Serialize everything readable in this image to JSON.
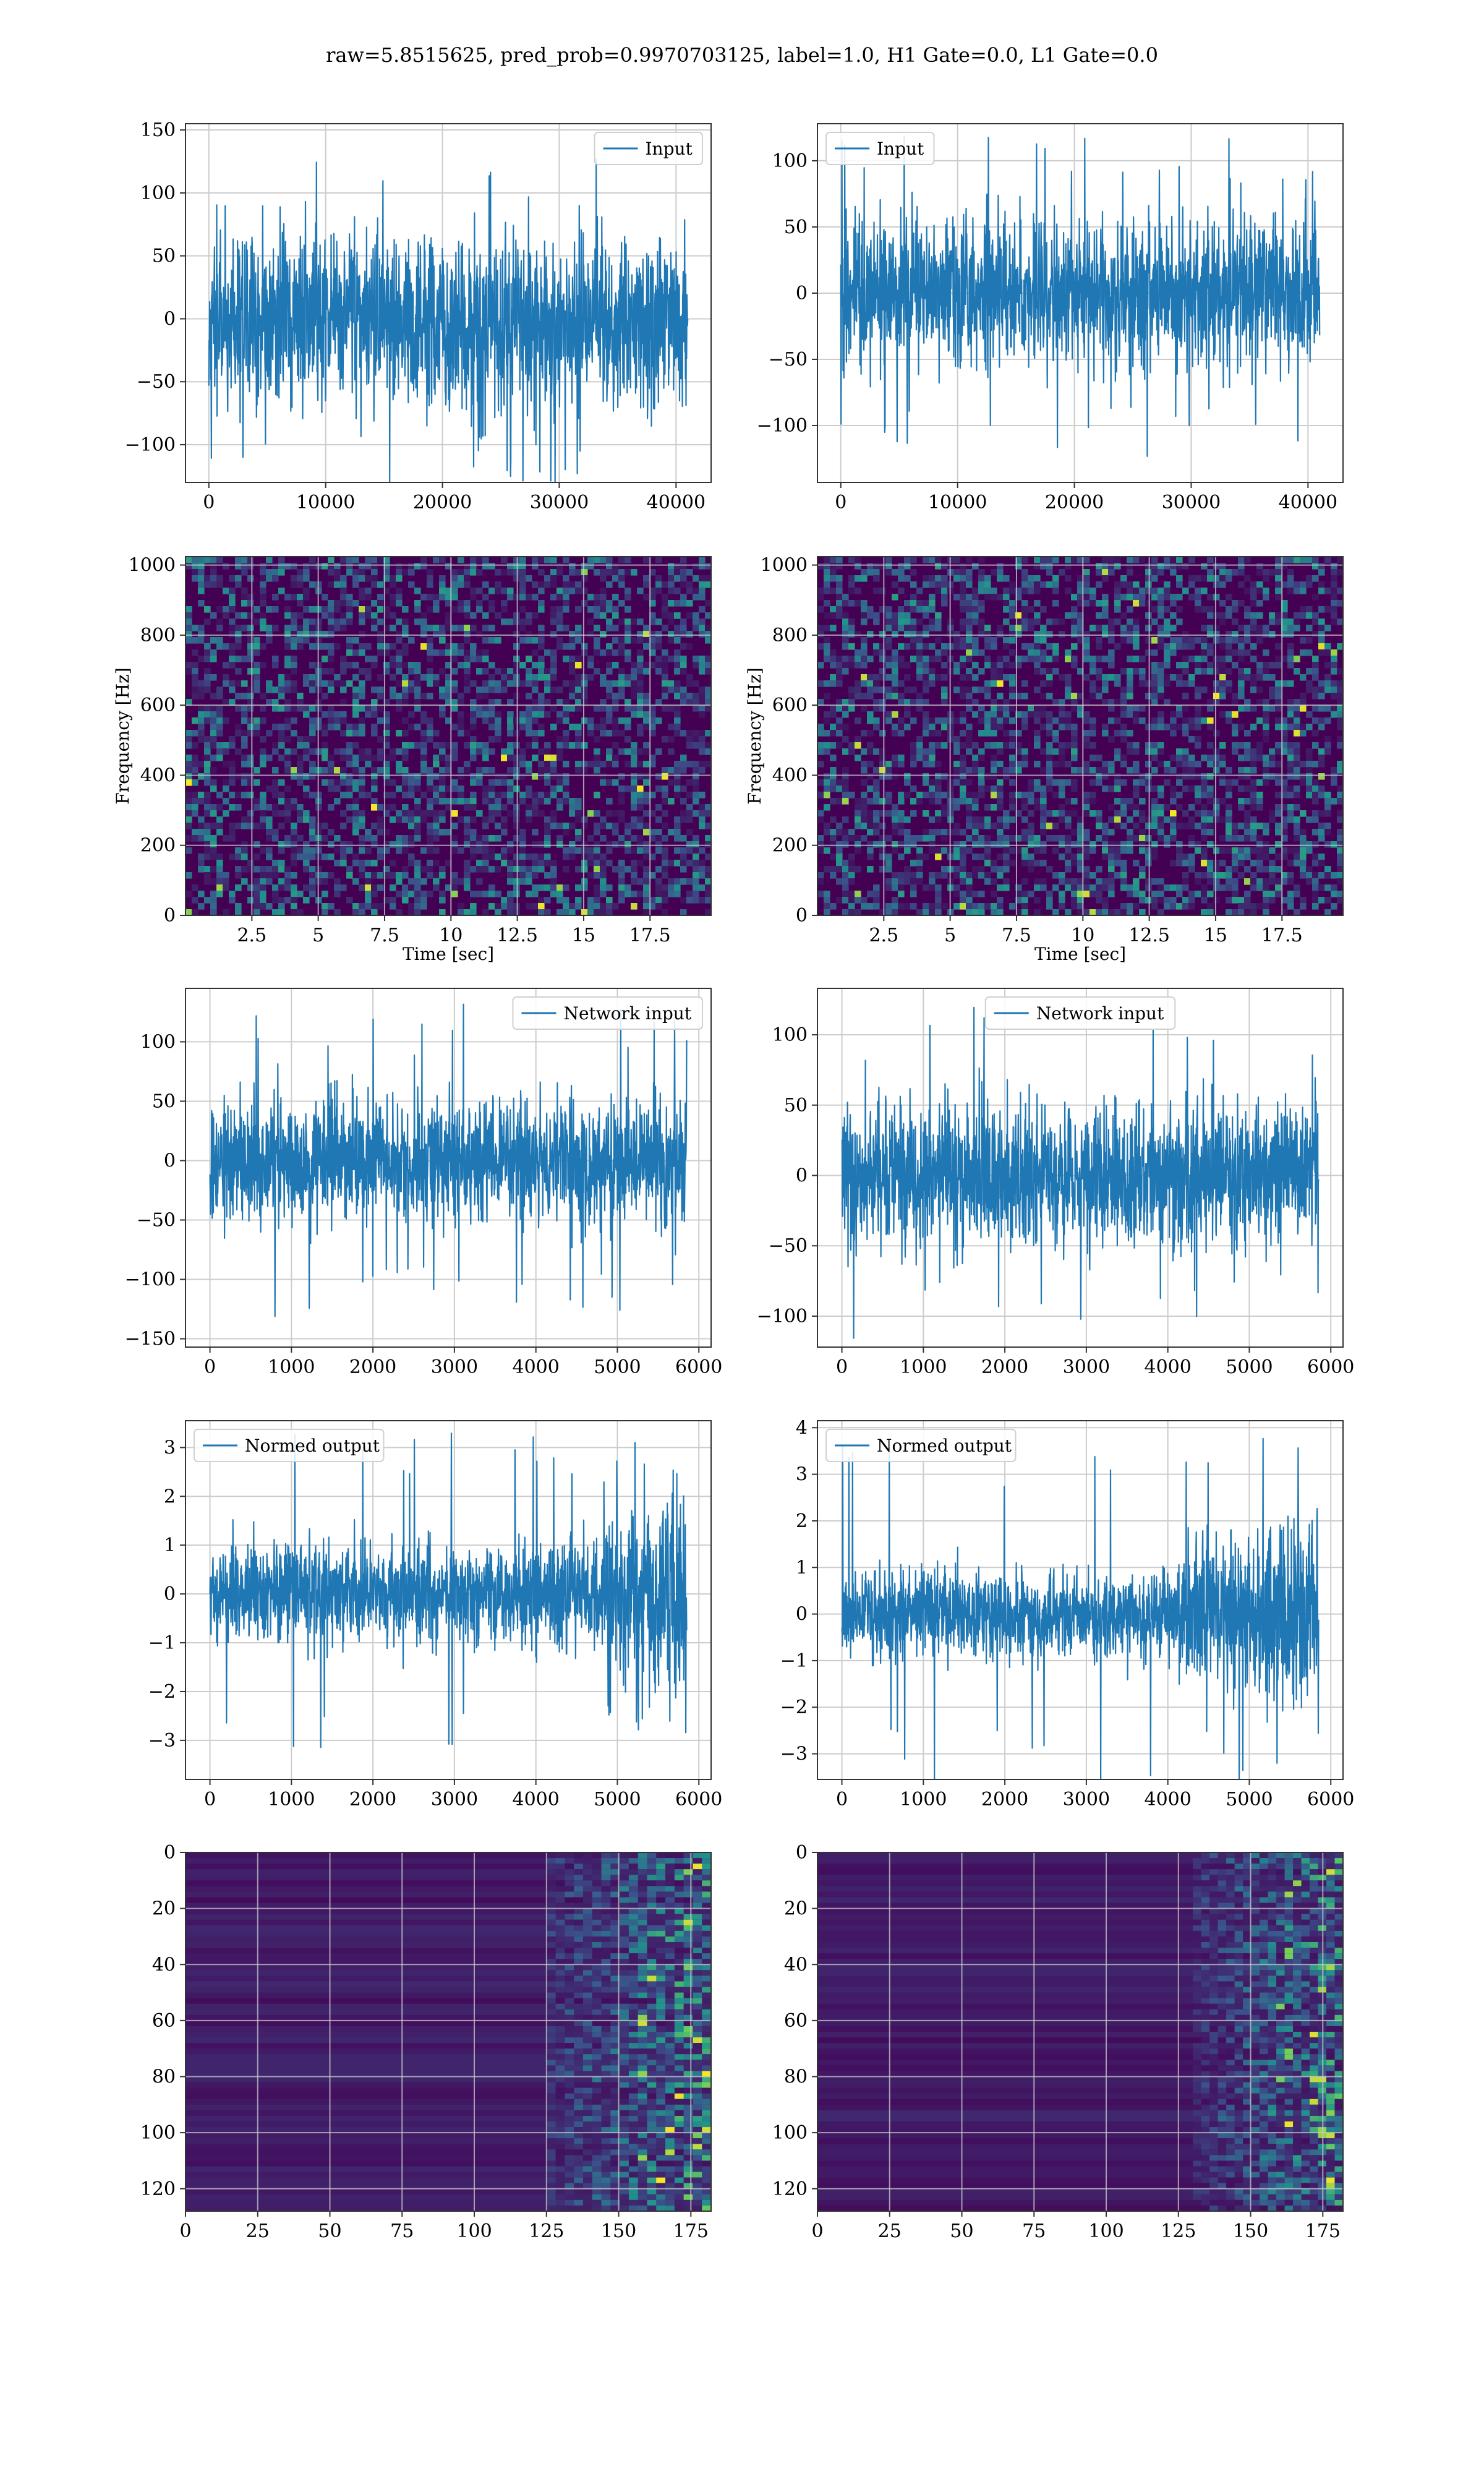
{
  "figure": {
    "title": "raw=5.8515625, pred_prob=0.9970703125, label=1.0, H1 Gate=0.0, L1 Gate=0.0"
  },
  "colors": {
    "line": "#1f77b4",
    "grid": "#cccccc",
    "spine": "#333333",
    "viridis_low": "#440154",
    "viridis_mid": "#21918c",
    "viridis_high": "#fde725"
  },
  "chart_data": [
    {
      "id": "input-h1",
      "type": "line",
      "legend_loc": "upper right",
      "series": [
        {
          "name": "Input",
          "kind": "noise",
          "n": 41000,
          "std": 33,
          "peak": 135
        }
      ],
      "xlim": [
        -2000,
        43000
      ],
      "ylim": [
        -130,
        155
      ],
      "xticks": [
        0,
        10000,
        20000,
        30000,
        40000
      ],
      "yticks": [
        -100,
        -50,
        0,
        50,
        100,
        150
      ],
      "xlabel": "",
      "ylabel": "",
      "grid": true
    },
    {
      "id": "input-l1",
      "type": "line",
      "legend_loc": "upper left",
      "series": [
        {
          "name": "Input",
          "kind": "noise",
          "n": 41000,
          "std": 28,
          "peak": 125
        }
      ],
      "xlim": [
        -2000,
        43000
      ],
      "ylim": [
        -143,
        128
      ],
      "xticks": [
        0,
        10000,
        20000,
        30000,
        40000
      ],
      "yticks": [
        -100,
        -50,
        0,
        50,
        100
      ],
      "xlabel": "",
      "ylabel": "",
      "grid": true
    },
    {
      "id": "spec-h1",
      "type": "heatmap",
      "palette": "viridis",
      "pattern": "noise",
      "xlim": [
        0,
        19.8
      ],
      "ylim": [
        0,
        1024
      ],
      "xticks": [
        2.5,
        5.0,
        7.5,
        10.0,
        12.5,
        15.0,
        17.5
      ],
      "yticks": [
        0,
        200,
        400,
        600,
        800,
        1000
      ],
      "xlabel": "Time [sec]",
      "ylabel": "Frequency [Hz]",
      "grid": true
    },
    {
      "id": "spec-l1",
      "type": "heatmap",
      "palette": "viridis",
      "pattern": "noise",
      "xlim": [
        0,
        19.8
      ],
      "ylim": [
        0,
        1024
      ],
      "xticks": [
        2.5,
        5.0,
        7.5,
        10.0,
        12.5,
        15.0,
        17.5
      ],
      "yticks": [
        0,
        200,
        400,
        600,
        800,
        1000
      ],
      "xlabel": "Time [sec]",
      "ylabel": "Frequency [Hz]",
      "grid": true
    },
    {
      "id": "netin-h1",
      "type": "line",
      "legend_loc": "upper right",
      "series": [
        {
          "name": "Network input",
          "kind": "noise",
          "n": 5850,
          "std": 25,
          "peak": 135
        }
      ],
      "xlim": [
        -300,
        6150
      ],
      "ylim": [
        -157,
        145
      ],
      "xticks": [
        0,
        1000,
        2000,
        3000,
        4000,
        5000,
        6000
      ],
      "yticks": [
        -150,
        -100,
        -50,
        0,
        50,
        100
      ],
      "xlabel": "",
      "ylabel": "",
      "grid": true
    },
    {
      "id": "netin-l1",
      "type": "line",
      "legend_loc": "upper center",
      "series": [
        {
          "name": "Network input",
          "kind": "noise",
          "n": 5850,
          "std": 25,
          "peak": 120
        }
      ],
      "xlim": [
        -300,
        6150
      ],
      "ylim": [
        -122,
        133
      ],
      "xticks": [
        0,
        1000,
        2000,
        3000,
        4000,
        5000,
        6000
      ],
      "yticks": [
        -100,
        -50,
        0,
        50,
        100
      ],
      "xlabel": "",
      "ylabel": "",
      "grid": true
    },
    {
      "id": "normed-h1",
      "type": "line",
      "legend_loc": "upper left",
      "series": [
        {
          "name": "Normed output",
          "kind": "chirp",
          "n": 5850,
          "std": 0.5,
          "burst_start": 4750,
          "burst_end": 5850,
          "burst_std": 1.1,
          "peak": 3.3
        }
      ],
      "xlim": [
        -300,
        6150
      ],
      "ylim": [
        -3.8,
        3.55
      ],
      "xticks": [
        0,
        1000,
        2000,
        3000,
        4000,
        5000,
        6000
      ],
      "yticks": [
        -3,
        -2,
        -1,
        0,
        1,
        2,
        3
      ],
      "xlabel": "",
      "ylabel": "",
      "grid": true
    },
    {
      "id": "normed-l1",
      "type": "line",
      "legend_loc": "upper left",
      "series": [
        {
          "name": "Normed output",
          "kind": "chirp",
          "n": 5850,
          "std": 0.45,
          "burst_start": 4100,
          "burst_end": 5850,
          "burst_std": 1.0,
          "peak": 3.8
        }
      ],
      "xlim": [
        -300,
        6150
      ],
      "ylim": [
        -3.55,
        4.15
      ],
      "xticks": [
        0,
        1000,
        2000,
        3000,
        4000,
        5000,
        6000
      ],
      "yticks": [
        -3,
        -2,
        -1,
        0,
        1,
        2,
        3,
        4
      ],
      "xlabel": "",
      "ylabel": "",
      "grid": true
    },
    {
      "id": "features-h1",
      "type": "heatmap",
      "palette": "viridis",
      "pattern": "features",
      "onset": 125,
      "xlim": [
        0,
        182
      ],
      "ylim": [
        128,
        0
      ],
      "xticks": [
        0,
        25,
        50,
        75,
        100,
        125,
        150,
        175
      ],
      "yticks": [
        0,
        20,
        40,
        60,
        80,
        100,
        120
      ],
      "xlabel": "",
      "ylabel": "",
      "grid": true
    },
    {
      "id": "features-l1",
      "type": "heatmap",
      "palette": "viridis",
      "pattern": "features",
      "onset": 130,
      "xlim": [
        0,
        182
      ],
      "ylim": [
        128,
        0
      ],
      "xticks": [
        0,
        25,
        50,
        75,
        100,
        125,
        150,
        175
      ],
      "yticks": [
        0,
        20,
        40,
        60,
        80,
        100,
        120
      ],
      "xlabel": "",
      "ylabel": "",
      "grid": true
    }
  ]
}
